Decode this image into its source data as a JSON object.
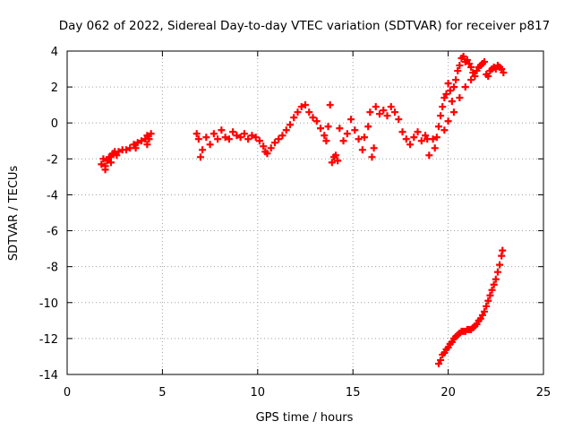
{
  "chart_data": {
    "type": "scatter",
    "title": "Day 062 of 2022, Sidereal Day-to-day VTEC variation (SDTVAR) for receiver p817",
    "xlabel": "GPS time / hours",
    "ylabel": "SDTVAR / TECUs",
    "xlim": [
      0,
      25
    ],
    "ylim": [
      -14,
      4
    ],
    "xticks": [
      0,
      5,
      10,
      15,
      20,
      25
    ],
    "yticks": [
      -14,
      -12,
      -10,
      -8,
      -6,
      -4,
      -2,
      0,
      2,
      4
    ],
    "grid": true,
    "marker": "plus",
    "color": "#ff0000",
    "series": [
      {
        "name": "SDTVAR",
        "points": [
          [
            1.8,
            -2.3
          ],
          [
            1.9,
            -2.0
          ],
          [
            2.0,
            -2.4
          ],
          [
            2.1,
            -2.1
          ],
          [
            2.2,
            -1.9
          ],
          [
            2.3,
            -1.9
          ],
          [
            2.4,
            -1.7
          ],
          [
            2.5,
            -1.6
          ],
          [
            2.6,
            -1.8
          ],
          [
            2.7,
            -1.6
          ],
          [
            2.9,
            -1.5
          ],
          [
            3.1,
            -1.5
          ],
          [
            3.3,
            -1.4
          ],
          [
            3.5,
            -1.2
          ],
          [
            3.7,
            -1.1
          ],
          [
            3.9,
            -1.0
          ],
          [
            4.1,
            -0.9
          ],
          [
            4.2,
            -0.7
          ],
          [
            4.3,
            -0.9
          ],
          [
            4.4,
            -0.6
          ],
          [
            2.0,
            -2.6
          ],
          [
            2.3,
            -2.2
          ],
          [
            3.6,
            -1.4
          ],
          [
            4.2,
            -1.2
          ],
          [
            6.8,
            -0.6
          ],
          [
            6.9,
            -0.9
          ],
          [
            7.0,
            -1.9
          ],
          [
            7.1,
            -1.5
          ],
          [
            7.3,
            -0.8
          ],
          [
            7.5,
            -1.2
          ],
          [
            7.7,
            -0.6
          ],
          [
            7.9,
            -0.9
          ],
          [
            8.1,
            -0.4
          ],
          [
            8.3,
            -0.8
          ],
          [
            8.5,
            -0.9
          ],
          [
            8.7,
            -0.5
          ],
          [
            8.9,
            -0.7
          ],
          [
            9.1,
            -0.8
          ],
          [
            9.3,
            -0.6
          ],
          [
            9.5,
            -0.9
          ],
          [
            9.7,
            -0.7
          ],
          [
            9.9,
            -0.8
          ],
          [
            10.1,
            -1.0
          ],
          [
            10.3,
            -1.3
          ],
          [
            10.4,
            -1.6
          ],
          [
            10.5,
            -1.7
          ],
          [
            10.7,
            -1.4
          ],
          [
            10.9,
            -1.1
          ],
          [
            11.1,
            -0.9
          ],
          [
            11.3,
            -0.7
          ],
          [
            11.5,
            -0.4
          ],
          [
            11.7,
            -0.1
          ],
          [
            11.9,
            0.3
          ],
          [
            12.1,
            0.6
          ],
          [
            12.3,
            0.9
          ],
          [
            12.5,
            1.0
          ],
          [
            12.7,
            0.6
          ],
          [
            12.9,
            0.3
          ],
          [
            13.1,
            0.1
          ],
          [
            13.3,
            -0.3
          ],
          [
            13.5,
            -0.7
          ],
          [
            13.6,
            -1.0
          ],
          [
            13.7,
            -0.2
          ],
          [
            13.8,
            1.0
          ],
          [
            13.9,
            -2.2
          ],
          [
            14.0,
            -1.9
          ],
          [
            14.1,
            -1.8
          ],
          [
            14.2,
            -2.1
          ],
          [
            14.3,
            -0.3
          ],
          [
            14.5,
            -1.0
          ],
          [
            14.7,
            -0.6
          ],
          [
            14.9,
            0.2
          ],
          [
            15.1,
            -0.4
          ],
          [
            15.3,
            -0.9
          ],
          [
            15.5,
            -1.5
          ],
          [
            15.6,
            -0.8
          ],
          [
            15.8,
            -0.2
          ],
          [
            15.9,
            0.6
          ],
          [
            16.0,
            -1.9
          ],
          [
            16.1,
            -1.4
          ],
          [
            16.2,
            0.9
          ],
          [
            16.4,
            0.5
          ],
          [
            16.6,
            0.7
          ],
          [
            16.8,
            0.4
          ],
          [
            17.0,
            0.9
          ],
          [
            17.2,
            0.6
          ],
          [
            17.4,
            0.2
          ],
          [
            17.6,
            -0.5
          ],
          [
            17.8,
            -0.9
          ],
          [
            18.0,
            -1.2
          ],
          [
            18.2,
            -0.8
          ],
          [
            18.4,
            -0.5
          ],
          [
            18.6,
            -1.0
          ],
          [
            18.8,
            -0.7
          ],
          [
            18.9,
            -0.9
          ],
          [
            19.0,
            -1.8
          ],
          [
            19.2,
            -0.9
          ],
          [
            19.3,
            -1.4
          ],
          [
            19.4,
            -0.8
          ],
          [
            19.5,
            -0.2
          ],
          [
            19.6,
            0.4
          ],
          [
            19.7,
            0.9
          ],
          [
            19.8,
            1.4
          ],
          [
            19.9,
            1.6
          ],
          [
            20.0,
            2.2
          ],
          [
            20.1,
            1.8
          ],
          [
            20.2,
            1.2
          ],
          [
            20.3,
            2.0
          ],
          [
            20.4,
            2.4
          ],
          [
            20.5,
            2.9
          ],
          [
            20.6,
            3.2
          ],
          [
            20.7,
            3.6
          ],
          [
            20.8,
            3.7
          ],
          [
            20.9,
            3.4
          ],
          [
            21.0,
            3.5
          ],
          [
            21.1,
            3.3
          ],
          [
            21.2,
            3.1
          ],
          [
            21.3,
            2.8
          ],
          [
            21.4,
            2.6
          ],
          [
            21.5,
            2.9
          ],
          [
            21.6,
            3.1
          ],
          [
            21.7,
            3.2
          ],
          [
            21.8,
            3.3
          ],
          [
            21.9,
            3.4
          ],
          [
            22.0,
            2.7
          ],
          [
            22.1,
            2.6
          ],
          [
            22.2,
            2.9
          ],
          [
            22.3,
            3.0
          ],
          [
            22.4,
            3.1
          ],
          [
            22.5,
            3.0
          ],
          [
            22.6,
            3.2
          ],
          [
            22.7,
            3.1
          ],
          [
            22.8,
            3.0
          ],
          [
            22.9,
            2.8
          ],
          [
            20.9,
            2.0
          ],
          [
            20.6,
            1.4
          ],
          [
            20.3,
            0.6
          ],
          [
            20.0,
            0.1
          ],
          [
            19.8,
            -0.4
          ],
          [
            21.2,
            2.4
          ],
          [
            19.5,
            -13.4
          ],
          [
            19.6,
            -13.2
          ],
          [
            19.7,
            -12.9
          ],
          [
            19.8,
            -12.8
          ],
          [
            19.9,
            -12.6
          ],
          [
            20.0,
            -12.5
          ],
          [
            20.1,
            -12.3
          ],
          [
            20.2,
            -12.2
          ],
          [
            20.3,
            -12.0
          ],
          [
            20.4,
            -11.9
          ],
          [
            20.5,
            -11.8
          ],
          [
            20.6,
            -11.7
          ],
          [
            20.7,
            -11.6
          ],
          [
            20.8,
            -11.6
          ],
          [
            20.9,
            -11.6
          ],
          [
            21.0,
            -11.5
          ],
          [
            21.1,
            -11.5
          ],
          [
            21.2,
            -11.5
          ],
          [
            21.3,
            -11.4
          ],
          [
            21.4,
            -11.3
          ],
          [
            21.5,
            -11.2
          ],
          [
            21.6,
            -11.0
          ],
          [
            21.7,
            -10.9
          ],
          [
            21.8,
            -10.7
          ],
          [
            21.9,
            -10.5
          ],
          [
            22.0,
            -10.2
          ],
          [
            22.1,
            -9.9
          ],
          [
            22.2,
            -9.6
          ],
          [
            22.3,
            -9.3
          ],
          [
            22.4,
            -9.0
          ],
          [
            22.5,
            -8.7
          ],
          [
            22.6,
            -8.3
          ],
          [
            22.7,
            -7.9
          ],
          [
            22.8,
            -7.4
          ],
          [
            22.85,
            -7.1
          ]
        ]
      }
    ]
  }
}
